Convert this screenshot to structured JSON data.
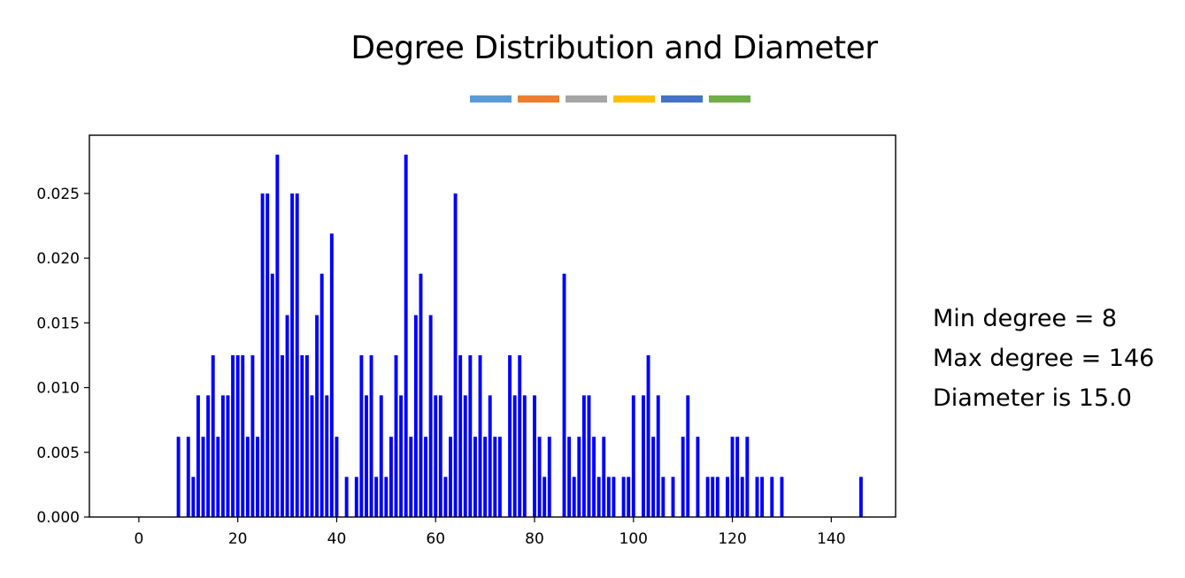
{
  "slide": {
    "title": "Degree Distribution and Diameter",
    "accent_colors": [
      "#5b9bd5",
      "#ed7d31",
      "#a5a5a5",
      "#ffc000",
      "#4472c4",
      "#70ad47"
    ]
  },
  "stats": {
    "min_degree": "Min degree = 8",
    "max_degree": "Max degree = 146",
    "diameter": "Diameter is 15.0"
  },
  "chart_data": {
    "type": "bar",
    "title": "",
    "xlabel": "",
    "ylabel": "",
    "bar_color": "#0000ff",
    "xlim": [
      -10,
      153
    ],
    "ylim": [
      0,
      0.0295
    ],
    "x_ticks": [
      0,
      20,
      40,
      60,
      80,
      100,
      120,
      140
    ],
    "y_ticks": [
      0.0,
      0.005,
      0.01,
      0.015,
      0.02,
      0.025
    ],
    "y_tick_labels": [
      "0.000",
      "0.005",
      "0.010",
      "0.015",
      "0.020",
      "0.025"
    ],
    "grid": false,
    "points": [
      [
        8,
        0.0062
      ],
      [
        10,
        0.0062
      ],
      [
        11,
        0.0031
      ],
      [
        12,
        0.0094
      ],
      [
        13,
        0.0062
      ],
      [
        14,
        0.0094
      ],
      [
        15,
        0.0125
      ],
      [
        16,
        0.0062
      ],
      [
        17,
        0.0094
      ],
      [
        18,
        0.0094
      ],
      [
        19,
        0.0125
      ],
      [
        20,
        0.0125
      ],
      [
        21,
        0.0125
      ],
      [
        22,
        0.0062
      ],
      [
        23,
        0.0125
      ],
      [
        24,
        0.0062
      ],
      [
        25,
        0.025
      ],
      [
        26,
        0.025
      ],
      [
        27,
        0.0188
      ],
      [
        28,
        0.028
      ],
      [
        29,
        0.0125
      ],
      [
        30,
        0.0156
      ],
      [
        31,
        0.025
      ],
      [
        32,
        0.025
      ],
      [
        33,
        0.0125
      ],
      [
        34,
        0.0125
      ],
      [
        35,
        0.0094
      ],
      [
        36,
        0.0156
      ],
      [
        37,
        0.0188
      ],
      [
        38,
        0.0094
      ],
      [
        39,
        0.0219
      ],
      [
        40,
        0.0062
      ],
      [
        42,
        0.0031
      ],
      [
        44,
        0.0031
      ],
      [
        45,
        0.0125
      ],
      [
        46,
        0.0094
      ],
      [
        47,
        0.0125
      ],
      [
        48,
        0.0031
      ],
      [
        49,
        0.0094
      ],
      [
        50,
        0.0031
      ],
      [
        51,
        0.0062
      ],
      [
        52,
        0.0125
      ],
      [
        53,
        0.0094
      ],
      [
        54,
        0.028
      ],
      [
        55,
        0.0062
      ],
      [
        56,
        0.0156
      ],
      [
        57,
        0.0188
      ],
      [
        58,
        0.0062
      ],
      [
        59,
        0.0156
      ],
      [
        60,
        0.0094
      ],
      [
        61,
        0.0094
      ],
      [
        62,
        0.0031
      ],
      [
        63,
        0.0062
      ],
      [
        64,
        0.025
      ],
      [
        65,
        0.0125
      ],
      [
        66,
        0.0094
      ],
      [
        67,
        0.0125
      ],
      [
        68,
        0.0062
      ],
      [
        69,
        0.0125
      ],
      [
        70,
        0.0062
      ],
      [
        71,
        0.0094
      ],
      [
        72,
        0.0062
      ],
      [
        73,
        0.0062
      ],
      [
        75,
        0.0125
      ],
      [
        76,
        0.0094
      ],
      [
        77,
        0.0125
      ],
      [
        78,
        0.0094
      ],
      [
        80,
        0.0094
      ],
      [
        81,
        0.0062
      ],
      [
        82,
        0.0031
      ],
      [
        83,
        0.0062
      ],
      [
        86,
        0.0188
      ],
      [
        87,
        0.0062
      ],
      [
        88,
        0.0031
      ],
      [
        89,
        0.0062
      ],
      [
        90,
        0.0094
      ],
      [
        91,
        0.0094
      ],
      [
        92,
        0.0062
      ],
      [
        93,
        0.0031
      ],
      [
        94,
        0.0062
      ],
      [
        95,
        0.0031
      ],
      [
        96,
        0.0031
      ],
      [
        98,
        0.0031
      ],
      [
        99,
        0.0031
      ],
      [
        100,
        0.0094
      ],
      [
        102,
        0.0094
      ],
      [
        103,
        0.0125
      ],
      [
        104,
        0.0062
      ],
      [
        105,
        0.0094
      ],
      [
        106,
        0.0031
      ],
      [
        108,
        0.0031
      ],
      [
        110,
        0.0062
      ],
      [
        111,
        0.0094
      ],
      [
        113,
        0.0062
      ],
      [
        115,
        0.0031
      ],
      [
        116,
        0.0031
      ],
      [
        117,
        0.0031
      ],
      [
        119,
        0.0031
      ],
      [
        120,
        0.0062
      ],
      [
        121,
        0.0062
      ],
      [
        122,
        0.0031
      ],
      [
        123,
        0.0062
      ],
      [
        125,
        0.0031
      ],
      [
        126,
        0.0031
      ],
      [
        128,
        0.0031
      ],
      [
        130,
        0.0031
      ],
      [
        146,
        0.0031
      ]
    ]
  }
}
